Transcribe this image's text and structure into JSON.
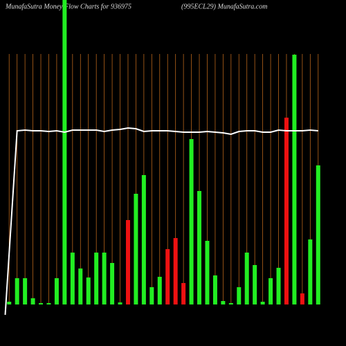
{
  "chart_data": {
    "type": "bar",
    "title": "MunafaSutra  Money Flow  Charts for 936975",
    "subtitle": "(995ECL29) MunafaSutra.com",
    "categories": [
      null,
      null,
      null,
      null,
      null,
      null,
      null,
      null,
      null,
      null,
      null,
      null,
      null,
      null,
      null,
      null,
      null,
      null,
      null,
      null,
      null,
      null,
      null,
      null,
      null,
      null,
      null,
      null,
      null,
      null,
      null,
      null,
      null,
      null,
      null,
      null,
      null,
      null,
      null,
      null
    ],
    "ylim": [
      0,
      440
    ],
    "grid_color": "#b8651b",
    "series": [
      {
        "values": [
          4,
          38,
          38,
          9,
          2,
          2,
          38,
          440,
          75,
          52,
          39,
          75,
          75,
          60,
          3,
          122,
          160,
          187,
          25,
          40,
          80,
          96,
          31,
          239,
          164,
          92,
          42,
          5,
          2,
          25,
          75,
          57,
          4,
          38,
          53,
          270,
          361,
          16,
          94,
          201
        ],
        "colors": [
          "#22ee22",
          "#22ee22",
          "#22ee22",
          "#22ee22",
          "#22ee22",
          "#22ee22",
          "#22ee22",
          "#22ee22",
          "#22ee22",
          "#22ee22",
          "#22ee22",
          "#22ee22",
          "#22ee22",
          "#22ee22",
          "#22ee22",
          "#ee1111",
          "#22ee22",
          "#22ee22",
          "#22ee22",
          "#22ee22",
          "#ee1111",
          "#ee1111",
          "#ee1111",
          "#22ee22",
          "#22ee22",
          "#22ee22",
          "#22ee22",
          "#22ee22",
          "#22ee22",
          "#22ee22",
          "#22ee22",
          "#22ee22",
          "#22ee22",
          "#22ee22",
          "#22ee22",
          "#ee1111",
          "#22ee22",
          "#ee1111",
          "#22ee22",
          "#22ee22"
        ]
      },
      {
        "type": "line",
        "color": "#ffffff",
        "values": [
          -15,
          251,
          252,
          251,
          251,
          250,
          251,
          249,
          252,
          252,
          252,
          252,
          250,
          252,
          253,
          255,
          254,
          250,
          251,
          251,
          251,
          250,
          249,
          249,
          249,
          250,
          249,
          248,
          246,
          250,
          251,
          251,
          249,
          249,
          252,
          251,
          251,
          251,
          252,
          251
        ]
      }
    ]
  }
}
